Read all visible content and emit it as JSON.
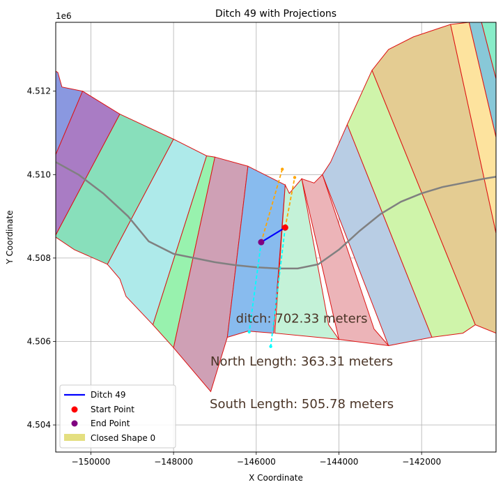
{
  "chart_data": {
    "type": "scatter",
    "title": "Ditch 49 with Projections",
    "xlabel": "X Coordinate",
    "ylabel": "Y Coordinate",
    "y_offset_label": "1e6",
    "xlim": [
      -150850,
      -140200
    ],
    "ylim": [
      4.50335,
      4.51365
    ],
    "x_ticks": [
      -150000,
      -148000,
      -146000,
      -144000,
      -142000
    ],
    "x_tick_labels": [
      "−150000",
      "−148000",
      "−146000",
      "−144000",
      "−142000"
    ],
    "y_ticks": [
      4.504,
      4.506,
      4.508,
      4.51,
      4.512
    ],
    "y_tick_labels": [
      "4.504",
      "4.506",
      "4.508",
      "4.510",
      "4.512"
    ],
    "grid": true,
    "legend_position": "lower-left",
    "series": [
      {
        "name": "Ditch 49",
        "kind": "line",
        "color": "#0000ff",
        "x": [
          -145300,
          -145880
        ],
        "y": [
          4.50873,
          4.50838
        ]
      },
      {
        "name": "Start Point",
        "kind": "point",
        "color": "#ff0000",
        "x": [
          -145300
        ],
        "y": [
          4.50873
        ]
      },
      {
        "name": "End Point",
        "kind": "point",
        "color": "#800080",
        "x": [
          -145880
        ],
        "y": [
          4.50838
        ]
      },
      {
        "name": "Closed Shape 0",
        "kind": "patch",
        "color": "#d8d24a"
      }
    ],
    "projections": [
      {
        "color": "#ffa500",
        "x": [
          -145880,
          -145370
        ],
        "y": [
          4.50838,
          4.51013
        ]
      },
      {
        "color": "#ffa500",
        "x": [
          -145300,
          -145070
        ],
        "y": [
          4.50873,
          4.50993
        ]
      },
      {
        "color": "#00ffff",
        "x": [
          -145880,
          -146170
        ],
        "y": [
          4.50838,
          4.50623
        ]
      },
      {
        "color": "#00ffff",
        "x": [
          -145300,
          -145650
        ],
        "y": [
          4.50873,
          4.50588
        ]
      }
    ],
    "road": {
      "color": "#808080",
      "x": [
        -150850,
        -150300,
        -149700,
        -149100,
        -148600,
        -148000,
        -147500,
        -147000,
        -146500,
        -146000,
        -145500,
        -145000,
        -144500,
        -144000,
        -143500,
        -143000,
        -142500,
        -142000,
        -141500,
        -141000,
        -140500,
        -140200
      ],
      "y": [
        4.5103,
        4.51,
        4.50955,
        4.509,
        4.5084,
        4.5081,
        4.508,
        4.5079,
        4.50783,
        4.50778,
        4.50775,
        4.50775,
        4.50785,
        4.5082,
        4.50865,
        4.50905,
        4.50935,
        4.50955,
        4.5097,
        4.5098,
        4.5099,
        4.50995
      ]
    },
    "regions": [
      {
        "color": "#8a98e0",
        "pts": [
          [
            -150850,
            4.51248
          ],
          [
            -150800,
            4.51245
          ],
          [
            -150700,
            4.5121
          ],
          [
            -150200,
            4.512
          ],
          [
            -150850,
            4.51048
          ]
        ]
      },
      {
        "color": "#a97cc4",
        "pts": [
          [
            -150200,
            4.512
          ],
          [
            -149300,
            4.51145
          ],
          [
            -150850,
            4.50855
          ],
          [
            -150850,
            4.51048
          ]
        ]
      },
      {
        "color": "#88dfbb",
        "pts": [
          [
            -149300,
            4.51145
          ],
          [
            -148000,
            4.51085
          ],
          [
            -149600,
            4.50785
          ],
          [
            -150400,
            4.5082
          ],
          [
            -150850,
            4.5085
          ],
          [
            -150850,
            4.50855
          ]
        ]
      },
      {
        "color": "#aeeaea",
        "pts": [
          [
            -148000,
            4.51085
          ],
          [
            -147200,
            4.51045
          ],
          [
            -148500,
            4.5064
          ],
          [
            -149150,
            4.50708
          ],
          [
            -149300,
            4.5075
          ],
          [
            -149600,
            4.50785
          ]
        ]
      },
      {
        "color": "#98f2ae",
        "pts": [
          [
            -147200,
            4.51045
          ],
          [
            -147000,
            4.51042
          ],
          [
            -148000,
            4.50585
          ],
          [
            -148500,
            4.5064
          ]
        ]
      },
      {
        "color": "#cfa0b5",
        "pts": [
          [
            -147000,
            4.51042
          ],
          [
            -146200,
            4.5102
          ],
          [
            -146700,
            4.5061
          ],
          [
            -147100,
            4.5048
          ],
          [
            -148000,
            4.50585
          ]
        ]
      },
      {
        "color": "#88bbee",
        "pts": [
          [
            -146200,
            4.5102
          ],
          [
            -145300,
            4.50975
          ],
          [
            -145580,
            4.5062
          ],
          [
            -146200,
            4.50625
          ],
          [
            -146700,
            4.5061
          ]
        ]
      },
      {
        "color": "#c4f2d8",
        "pts": [
          [
            -145300,
            4.50975
          ],
          [
            -145200,
            4.50955
          ],
          [
            -144900,
            4.5099
          ],
          [
            -144250,
            4.5064
          ],
          [
            -144000,
            4.50605
          ],
          [
            -145550,
            4.5062
          ]
        ]
      },
      {
        "color": "#ecb4b8",
        "pts": [
          [
            -144900,
            4.5099
          ],
          [
            -144600,
            4.5098
          ],
          [
            -144400,
            4.51
          ],
          [
            -143150,
            4.5063
          ],
          [
            -142800,
            4.5059
          ],
          [
            -144000,
            4.50605
          ]
        ]
      },
      {
        "color": "#b8cde4",
        "pts": [
          [
            -144400,
            4.51
          ],
          [
            -144200,
            4.5103
          ],
          [
            -143800,
            4.5112
          ],
          [
            -141750,
            4.5061
          ],
          [
            -142800,
            4.5059
          ]
        ]
      },
      {
        "color": "#cff4aa",
        "pts": [
          [
            -143800,
            4.5112
          ],
          [
            -143200,
            4.5125
          ],
          [
            -140700,
            4.5064
          ],
          [
            -141000,
            4.5062
          ],
          [
            -141750,
            4.5061
          ]
        ]
      },
      {
        "color": "#e4cc92",
        "pts": [
          [
            -143200,
            4.5125
          ],
          [
            -142800,
            4.513
          ],
          [
            -142200,
            4.5133
          ],
          [
            -141300,
            4.5136
          ],
          [
            -140200,
            4.5086
          ],
          [
            -140200,
            4.5062
          ],
          [
            -140700,
            4.5064
          ]
        ]
      },
      {
        "color": "#fde39e",
        "pts": [
          [
            -141300,
            4.5136
          ],
          [
            -140850,
            4.51365
          ],
          [
            -140200,
            4.5109
          ],
          [
            -140200,
            4.5086
          ]
        ]
      },
      {
        "color": "#88c8d8",
        "pts": [
          [
            -140850,
            4.51365
          ],
          [
            -140550,
            4.51365
          ],
          [
            -140200,
            4.5123
          ],
          [
            -140200,
            4.5109
          ]
        ]
      },
      {
        "color": "#88ecc8",
        "pts": [
          [
            -140550,
            4.51365
          ],
          [
            -140200,
            4.51365
          ],
          [
            -140200,
            4.5123
          ]
        ]
      }
    ],
    "annotations": [
      {
        "text": "ditch: 702.33 meters",
        "x": -144900,
        "y": 4.50645
      },
      {
        "text": "North Length: 363.31 meters",
        "x": -144900,
        "y": 4.50542
      },
      {
        "text": "South Length: 505.78 meters",
        "x": -144900,
        "y": 4.5044
      }
    ]
  }
}
